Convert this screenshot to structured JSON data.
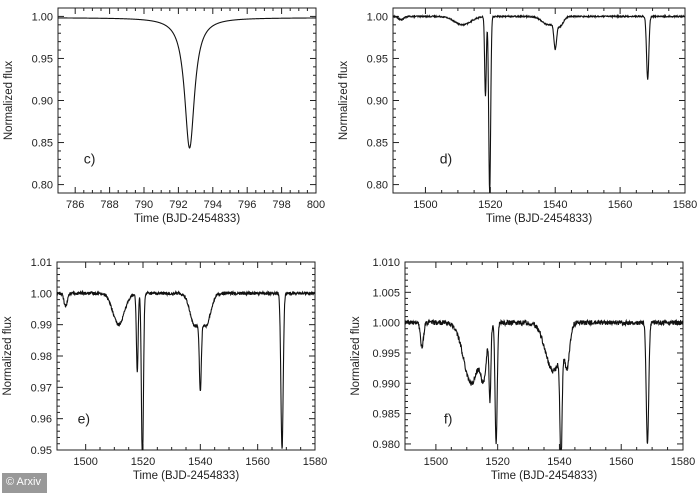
{
  "credit": "© Arxiv",
  "colors": {
    "axis": "#222222",
    "line": "#111111",
    "background": "#ffffff"
  },
  "chart_data": [
    {
      "id": "c",
      "type": "line",
      "panel_label": "c)",
      "xlabel": "Time (BJD-2454833)",
      "ylabel": "Normalized flux",
      "xlim": [
        785,
        800
      ],
      "ylim": [
        0.79,
        1.01
      ],
      "xticks": [
        786,
        788,
        790,
        792,
        794,
        796,
        798,
        800
      ],
      "yticks": [
        0.8,
        0.85,
        0.9,
        0.95,
        1.0
      ],
      "ytick_decimals": 2,
      "baseline": 0.9985,
      "noise": 0,
      "dips": [
        {
          "center": 792.65,
          "depth": 0.155,
          "width": 0.35,
          "shape": "lorentz"
        }
      ]
    },
    {
      "id": "d",
      "type": "line",
      "panel_label": "d)",
      "xlabel": "Time (BJD-2454833)",
      "ylabel": "Normalized flux",
      "xlim": [
        1490,
        1580
      ],
      "ylim": [
        0.79,
        1.01
      ],
      "xticks": [
        1500,
        1520,
        1540,
        1560,
        1580
      ],
      "yticks": [
        0.8,
        0.85,
        0.9,
        0.95,
        1.0
      ],
      "ytick_decimals": 2,
      "baseline": 1.0,
      "noise": 0.0008,
      "dips": [
        {
          "center": 1492.5,
          "depth": 0.004,
          "width": 0.8,
          "shape": "gauss"
        },
        {
          "center": 1511.5,
          "depth": 0.01,
          "width": 2.5,
          "shape": "gauss"
        },
        {
          "center": 1518.5,
          "depth": 0.095,
          "width": 0.25,
          "shape": "gauss"
        },
        {
          "center": 1519.8,
          "depth": 0.21,
          "width": 0.3,
          "shape": "gauss"
        },
        {
          "center": 1540.0,
          "depth": 0.03,
          "width": 0.4,
          "shape": "gauss"
        },
        {
          "center": 1541.5,
          "depth": 0.01,
          "width": 1.0,
          "shape": "gauss"
        },
        {
          "center": 1538.0,
          "depth": 0.01,
          "width": 2.0,
          "shape": "gauss"
        },
        {
          "center": 1568.5,
          "depth": 0.075,
          "width": 0.35,
          "shape": "gauss"
        }
      ]
    },
    {
      "id": "e",
      "type": "line",
      "panel_label": "e)",
      "xlabel": "Time (BJD-2454833)",
      "ylabel": "Normalized flux",
      "xlim": [
        1490,
        1580
      ],
      "ylim": [
        0.95,
        1.01
      ],
      "xticks": [
        1500,
        1520,
        1540,
        1560,
        1580
      ],
      "yticks": [
        0.95,
        0.96,
        0.97,
        0.98,
        0.99,
        1.0,
        1.01
      ],
      "ytick_decimals": 2,
      "baseline": 1.0,
      "noise": 0.0005,
      "dips": [
        {
          "center": 1493.0,
          "depth": 0.004,
          "width": 0.6,
          "shape": "gauss"
        },
        {
          "center": 1511.5,
          "depth": 0.01,
          "width": 2.0,
          "shape": "gauss"
        },
        {
          "center": 1518.0,
          "depth": 0.025,
          "width": 0.3,
          "shape": "gauss"
        },
        {
          "center": 1519.8,
          "depth": 0.055,
          "width": 0.35,
          "shape": "gauss"
        },
        {
          "center": 1540.0,
          "depth": 0.022,
          "width": 0.35,
          "shape": "gauss"
        },
        {
          "center": 1538.0,
          "depth": 0.01,
          "width": 1.6,
          "shape": "gauss"
        },
        {
          "center": 1542.0,
          "depth": 0.01,
          "width": 1.6,
          "shape": "gauss"
        },
        {
          "center": 1568.5,
          "depth": 0.05,
          "width": 0.4,
          "shape": "gauss"
        }
      ]
    },
    {
      "id": "f",
      "type": "line",
      "panel_label": "f)",
      "xlabel": "Time (BJD-2454833)",
      "ylabel": "Normalized flux",
      "xlim": [
        1490,
        1580
      ],
      "ylim": [
        0.979,
        1.01
      ],
      "xticks": [
        1500,
        1520,
        1540,
        1560,
        1580
      ],
      "yticks": [
        0.98,
        0.985,
        0.99,
        0.995,
        1.0,
        1.005,
        1.01
      ],
      "ytick_decimals": 3,
      "baseline": 1.0,
      "noise": 0.0004,
      "dips": [
        {
          "center": 1495.5,
          "depth": 0.004,
          "width": 0.5,
          "shape": "gauss"
        },
        {
          "center": 1511.5,
          "depth": 0.01,
          "width": 2.5,
          "shape": "gauss"
        },
        {
          "center": 1515.5,
          "depth": 0.007,
          "width": 0.9,
          "shape": "gauss"
        },
        {
          "center": 1517.5,
          "depth": 0.012,
          "width": 0.3,
          "shape": "gauss"
        },
        {
          "center": 1519.5,
          "depth": 0.02,
          "width": 0.35,
          "shape": "gauss"
        },
        {
          "center": 1538.0,
          "depth": 0.008,
          "width": 2.5,
          "shape": "gauss"
        },
        {
          "center": 1540.5,
          "depth": 0.018,
          "width": 0.35,
          "shape": "gauss"
        },
        {
          "center": 1542.5,
          "depth": 0.006,
          "width": 0.8,
          "shape": "gauss"
        },
        {
          "center": 1568.5,
          "depth": 0.02,
          "width": 0.4,
          "shape": "gauss"
        }
      ]
    }
  ]
}
